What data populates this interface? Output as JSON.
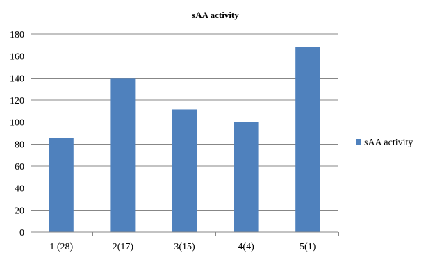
{
  "chart_data": {
    "type": "bar",
    "title": "sAA activity",
    "xlabel": "",
    "ylabel": "",
    "categories": [
      "1 (28)",
      "2(17)",
      "3(15)",
      "4(4)",
      "5(1)"
    ],
    "series": [
      {
        "name": "sAA activity",
        "values": [
          85.5,
          140,
          111.5,
          100,
          168.5
        ],
        "color": "#4f81bd"
      }
    ],
    "ylim": [
      0,
      180
    ],
    "yticks": [
      0,
      20,
      40,
      60,
      80,
      100,
      120,
      140,
      160,
      180
    ],
    "grid": true,
    "legend_position": "right"
  }
}
